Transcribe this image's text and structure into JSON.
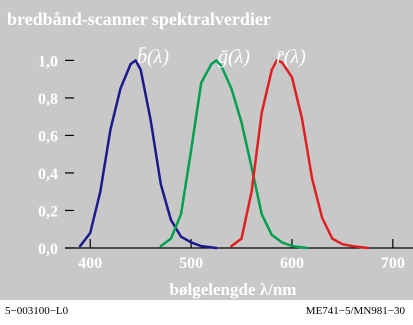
{
  "chart_data": {
    "type": "line",
    "title": "bredbånd-scanner spektralverdier",
    "xlabel": "bølgelengde λ/nm",
    "ylabel": "",
    "xlim": [
      375,
      720
    ],
    "ylim": [
      0.0,
      1.05
    ],
    "x_ticks": [
      400,
      500,
      600,
      700
    ],
    "y_ticks": [
      0.0,
      0.2,
      0.4,
      0.6,
      0.8,
      1.0
    ],
    "x_tick_labels": [
      "400",
      "500",
      "600",
      "700"
    ],
    "y_tick_labels": [
      "0,0",
      "0,2",
      "0,4",
      "0,6",
      "0,8",
      "1,0"
    ],
    "grid": false,
    "background_color": "#c8c8c8",
    "series": [
      {
        "name": "b̄(λ)",
        "color": "#1a1a8c",
        "x": [
          390,
          400,
          410,
          420,
          430,
          440,
          445,
          450,
          460,
          470,
          480,
          490,
          500,
          510,
          525
        ],
        "y": [
          0.01,
          0.08,
          0.3,
          0.63,
          0.85,
          0.98,
          1.0,
          0.95,
          0.68,
          0.34,
          0.15,
          0.06,
          0.03,
          0.01,
          0.0
        ]
      },
      {
        "name": "ḡ(λ)",
        "color": "#00a050",
        "x": [
          470,
          480,
          490,
          500,
          510,
          520,
          525,
          530,
          540,
          550,
          560,
          570,
          580,
          590,
          600,
          615
        ],
        "y": [
          0.01,
          0.05,
          0.18,
          0.52,
          0.88,
          0.98,
          1.0,
          0.97,
          0.85,
          0.67,
          0.43,
          0.18,
          0.07,
          0.03,
          0.01,
          0.0
        ]
      },
      {
        "name": "r̄(λ)",
        "color": "#e02020",
        "x": [
          540,
          550,
          560,
          570,
          580,
          585,
          590,
          600,
          610,
          620,
          630,
          640,
          650,
          660,
          675
        ],
        "y": [
          0.01,
          0.05,
          0.3,
          0.72,
          0.95,
          1.0,
          0.99,
          0.91,
          0.69,
          0.37,
          0.16,
          0.05,
          0.02,
          0.01,
          0.0
        ]
      }
    ]
  },
  "footer": {
    "left": "5−003100−L0",
    "right": "ME741−5/MN981−30"
  }
}
